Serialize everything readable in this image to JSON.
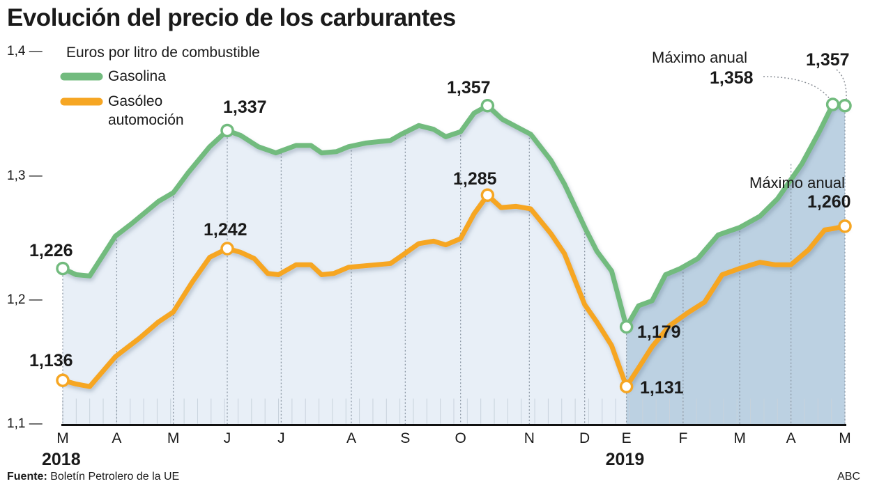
{
  "chart_data": {
    "type": "line",
    "title": "Evolución del precio de los carburantes",
    "ylabel": "Euros por litro de combustible",
    "xlabel": "",
    "x_unit": "weeks since March 2018",
    "ylim": [
      1.1,
      1.4
    ],
    "yticks": [
      {
        "v": 1.4,
        "label": "1,4"
      },
      {
        "v": 1.3,
        "label": "1,3"
      },
      {
        "v": 1.2,
        "label": "1,2"
      },
      {
        "v": 1.1,
        "label": "1,1"
      }
    ],
    "xticks": [
      {
        "w": 0,
        "label": "M"
      },
      {
        "w": 4.0,
        "label": "A"
      },
      {
        "w": 8.2,
        "label": "M"
      },
      {
        "w": 12.2,
        "label": "J"
      },
      {
        "w": 16.2,
        "label": "J"
      },
      {
        "w": 21.4,
        "label": "A"
      },
      {
        "w": 25.4,
        "label": "S"
      },
      {
        "w": 29.5,
        "label": "O"
      },
      {
        "w": 34.6,
        "label": "N"
      },
      {
        "w": 38.7,
        "label": "D"
      },
      {
        "w": 41.8,
        "label": "E"
      },
      {
        "w": 46.0,
        "label": "F"
      },
      {
        "w": 50.2,
        "label": "M"
      },
      {
        "w": 54.0,
        "label": "A"
      },
      {
        "w": 58.0,
        "label": "M"
      }
    ],
    "years": [
      {
        "w": 0,
        "label": "2018"
      },
      {
        "w": 41.8,
        "label": "2019"
      }
    ],
    "grid": false,
    "legend_position": "top-left",
    "series": [
      {
        "name": "Gasolina",
        "color": "#72bb7e",
        "points": [
          [
            0,
            1.226
          ],
          [
            1,
            1.221
          ],
          [
            2,
            1.22
          ],
          [
            3.9,
            1.252
          ],
          [
            5.1,
            1.262
          ],
          [
            7.1,
            1.28
          ],
          [
            8.2,
            1.287
          ],
          [
            9.3,
            1.303
          ],
          [
            10.9,
            1.324
          ],
          [
            12.2,
            1.337
          ],
          [
            13.2,
            1.333
          ],
          [
            14.5,
            1.324
          ],
          [
            15.8,
            1.319
          ],
          [
            17.3,
            1.325
          ],
          [
            18.4,
            1.325
          ],
          [
            19.2,
            1.319
          ],
          [
            20.3,
            1.32
          ],
          [
            21.2,
            1.324
          ],
          [
            22.5,
            1.327
          ],
          [
            24.3,
            1.329
          ],
          [
            25.1,
            1.334
          ],
          [
            26.4,
            1.341
          ],
          [
            27.5,
            1.338
          ],
          [
            28.4,
            1.332
          ],
          [
            29.5,
            1.336
          ],
          [
            30.5,
            1.351
          ],
          [
            31.5,
            1.357
          ],
          [
            32.6,
            1.346
          ],
          [
            34.7,
            1.334
          ],
          [
            36.2,
            1.313
          ],
          [
            37.2,
            1.294
          ],
          [
            38.8,
            1.257
          ],
          [
            39.6,
            1.24
          ],
          [
            40.7,
            1.224
          ],
          [
            41.8,
            1.179
          ],
          [
            42.7,
            1.196
          ],
          [
            43.7,
            1.2
          ],
          [
            44.7,
            1.221
          ],
          [
            45.8,
            1.226
          ],
          [
            47.1,
            1.234
          ],
          [
            48.6,
            1.253
          ],
          [
            50.2,
            1.259
          ],
          [
            51.7,
            1.268
          ],
          [
            53.0,
            1.282
          ],
          [
            54.8,
            1.31
          ],
          [
            56.1,
            1.336
          ],
          [
            57.1,
            1.358
          ],
          [
            58.0,
            1.357
          ]
        ]
      },
      {
        "name": "Gasóleo automoción",
        "color": "#f6a623",
        "points": [
          [
            0,
            1.136
          ],
          [
            1,
            1.133
          ],
          [
            2,
            1.131
          ],
          [
            3.9,
            1.155
          ],
          [
            5.7,
            1.17
          ],
          [
            7.1,
            1.183
          ],
          [
            8.2,
            1.191
          ],
          [
            9.6,
            1.215
          ],
          [
            10.9,
            1.235
          ],
          [
            12.2,
            1.242
          ],
          [
            13.2,
            1.239
          ],
          [
            14.2,
            1.234
          ],
          [
            15.2,
            1.222
          ],
          [
            16.0,
            1.221
          ],
          [
            17.3,
            1.229
          ],
          [
            18.4,
            1.229
          ],
          [
            19.2,
            1.221
          ],
          [
            20.1,
            1.222
          ],
          [
            21.2,
            1.227
          ],
          [
            24.3,
            1.23
          ],
          [
            25.1,
            1.236
          ],
          [
            26.4,
            1.246
          ],
          [
            27.5,
            1.248
          ],
          [
            28.4,
            1.245
          ],
          [
            29.5,
            1.25
          ],
          [
            30.5,
            1.27
          ],
          [
            31.5,
            1.285
          ],
          [
            32.5,
            1.275
          ],
          [
            33.6,
            1.276
          ],
          [
            34.7,
            1.274
          ],
          [
            36.2,
            1.254
          ],
          [
            37.2,
            1.238
          ],
          [
            38.7,
            1.197
          ],
          [
            39.6,
            1.183
          ],
          [
            40.7,
            1.164
          ],
          [
            41.8,
            1.131
          ],
          [
            42.7,
            1.146
          ],
          [
            43.7,
            1.163
          ],
          [
            45.0,
            1.18
          ],
          [
            46.3,
            1.19
          ],
          [
            47.6,
            1.199
          ],
          [
            48.9,
            1.221
          ],
          [
            50.2,
            1.226
          ],
          [
            51.7,
            1.231
          ],
          [
            52.8,
            1.229
          ],
          [
            54.0,
            1.229
          ],
          [
            55.3,
            1.241
          ],
          [
            56.5,
            1.257
          ],
          [
            57.1,
            1.258
          ],
          [
            58.0,
            1.26
          ]
        ]
      }
    ],
    "markers": [
      {
        "series": 0,
        "w": 0,
        "v": 1.226
      },
      {
        "series": 0,
        "w": 12.2,
        "v": 1.337
      },
      {
        "series": 0,
        "w": 31.5,
        "v": 1.357
      },
      {
        "series": 0,
        "w": 41.8,
        "v": 1.179
      },
      {
        "series": 0,
        "w": 57.1,
        "v": 1.358
      },
      {
        "series": 0,
        "w": 58.0,
        "v": 1.357
      },
      {
        "series": 1,
        "w": 0,
        "v": 1.136
      },
      {
        "series": 1,
        "w": 12.2,
        "v": 1.242
      },
      {
        "series": 1,
        "w": 31.5,
        "v": 1.285
      },
      {
        "series": 1,
        "w": 41.8,
        "v": 1.131
      },
      {
        "series": 1,
        "w": 58.0,
        "v": 1.26
      }
    ],
    "annotations": {
      "g_start": "1,226",
      "g_jun": "1,337",
      "g_oct": "1,357",
      "g_jan": "1,179",
      "g_max_note": "Máximo anual",
      "g_max": "1,358",
      "g_end": "1,357",
      "o_start": "1,136",
      "o_jun": "1,242",
      "o_oct": "1,285",
      "o_jan": "1,131",
      "o_max_note": "Máximo anual",
      "o_end": "1,260"
    }
  },
  "footer": {
    "source_label": "Fuente:",
    "source": " Boletín Petrolero de la UE",
    "brand": "ABC"
  }
}
